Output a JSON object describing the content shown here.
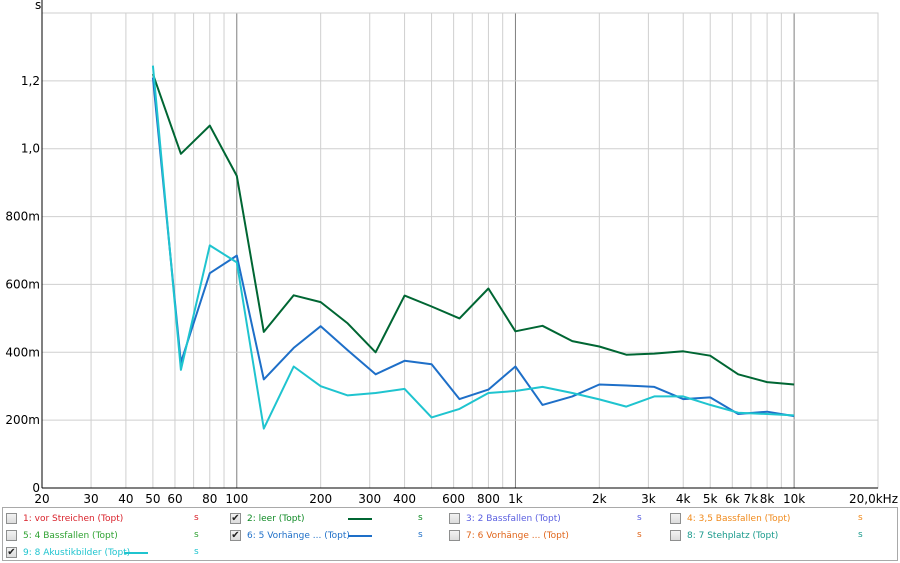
{
  "chart_data": {
    "type": "line",
    "ylabel": "s",
    "xscale": "log",
    "xlim": [
      20,
      20000
    ],
    "ylim": [
      0,
      1400
    ],
    "grid": true,
    "x_ticks": [
      {
        "value": 20,
        "label": "20"
      },
      {
        "value": 30,
        "label": "30"
      },
      {
        "value": 40,
        "label": "40"
      },
      {
        "value": 50,
        "label": "50"
      },
      {
        "value": 60,
        "label": "60"
      },
      {
        "value": 80,
        "label": "80"
      },
      {
        "value": 100,
        "label": "100"
      },
      {
        "value": 200,
        "label": "200"
      },
      {
        "value": 300,
        "label": "300"
      },
      {
        "value": 400,
        "label": "400"
      },
      {
        "value": 600,
        "label": "600"
      },
      {
        "value": 800,
        "label": "800"
      },
      {
        "value": 1000,
        "label": "1k"
      },
      {
        "value": 2000,
        "label": "2k"
      },
      {
        "value": 3000,
        "label": "3k"
      },
      {
        "value": 4000,
        "label": "4k"
      },
      {
        "value": 5000,
        "label": "5k"
      },
      {
        "value": 6000,
        "label": "6k"
      },
      {
        "value": 7000,
        "label": "7k"
      },
      {
        "value": 8000,
        "label": "8k"
      },
      {
        "value": 10000,
        "label": "10k"
      },
      {
        "value": 20000,
        "label": "20,0kHz"
      }
    ],
    "y_ticks": [
      {
        "value": 0,
        "label": "0"
      },
      {
        "value": 200,
        "label": "200m"
      },
      {
        "value": 400,
        "label": "400m"
      },
      {
        "value": 600,
        "label": "600m"
      },
      {
        "value": 800,
        "label": "800m"
      },
      {
        "value": 1000,
        "label": "1,0"
      },
      {
        "value": 1200,
        "label": "1,2"
      }
    ],
    "x": [
      50,
      63,
      80,
      100,
      125,
      160,
      200,
      250,
      315,
      400,
      500,
      630,
      800,
      1000,
      1250,
      1600,
      2000,
      2500,
      3150,
      4000,
      5000,
      6300,
      8000,
      10000
    ],
    "series": [
      {
        "name": "2: leer (Topt)",
        "color": "#006633",
        "values": [
          1220,
          985,
          1068,
          920,
          460,
          568,
          548,
          485,
          400,
          567,
          535,
          500,
          588,
          462,
          478,
          433,
          417,
          393,
          396,
          403,
          390,
          335,
          312,
          305
        ]
      },
      {
        "name": "6: 5 Vorhänge ... (Topt)",
        "color": "#1e6fc8",
        "values": [
          1210,
          370,
          633,
          685,
          320,
          413,
          477,
          406,
          335,
          375,
          365,
          262,
          290,
          358,
          245,
          270,
          305,
          302,
          298,
          262,
          267,
          218,
          225,
          212
        ]
      },
      {
        "name": "9: 8 Akustikbilder (Topt)",
        "color": "#1fc4cf",
        "values": [
          1245,
          348,
          715,
          665,
          175,
          358,
          300,
          273,
          280,
          292,
          208,
          233,
          280,
          286,
          298,
          280,
          261,
          240,
          270,
          270,
          245,
          222,
          218,
          214
        ]
      }
    ]
  },
  "legend": [
    {
      "label": "1: vor Streichen (Topt)",
      "color": "#d9222b",
      "checked": false,
      "unit": "s"
    },
    {
      "label": "2: leer (Topt)",
      "color": "#0f8a25",
      "line": "#006633",
      "checked": true,
      "unit": "s"
    },
    {
      "label": "3: 2 Bassfallen (Topt)",
      "color": "#5a5fe0",
      "checked": false,
      "unit": "s"
    },
    {
      "label": "4: 3,5 Bassfallen (Topt)",
      "color": "#f08a1c",
      "checked": false,
      "unit": "s"
    },
    {
      "label": "5: 4 Bassfallen (Topt)",
      "color": "#2fa232",
      "checked": false,
      "unit": "s"
    },
    {
      "label": "6: 5 Vorhänge ... (Topt)",
      "color": "#1e6fc8",
      "line": "#1e6fc8",
      "checked": true,
      "unit": "s"
    },
    {
      "label": "7: 6 Vorhänge ... (Topt)",
      "color": "#e0651a",
      "checked": false,
      "unit": "s"
    },
    {
      "label": "8: 7 Stehplatz (Topt)",
      "color": "#1a9a8c",
      "checked": false,
      "unit": "s"
    },
    {
      "label": "9: 8 Akustikbilder (Topt)",
      "color": "#1fc4cf",
      "line": "#1fc4cf",
      "checked": true,
      "unit": "s"
    }
  ],
  "colors": {
    "grid_minor": "#cfcfcf",
    "grid_major": "#7f7f7f",
    "axis": "#000000"
  }
}
